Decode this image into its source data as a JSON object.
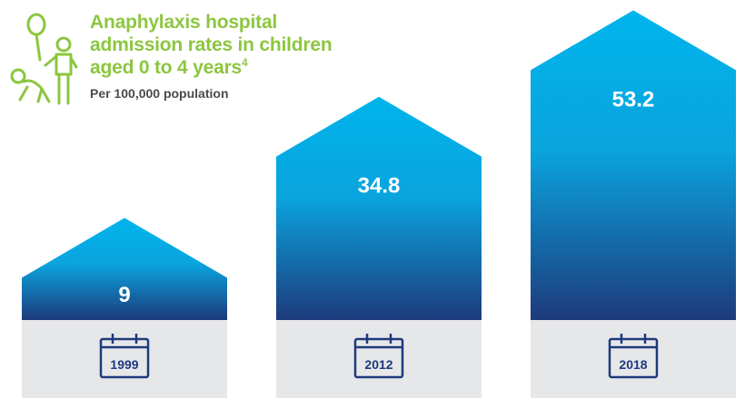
{
  "header": {
    "title": "Anaphylaxis hospital admission rates in children aged 0 to 4 years",
    "footnote": "4",
    "subtitle": "Per 100,000 population",
    "icon": "children-playing-icon"
  },
  "colors": {
    "title": "#8cc63f",
    "bar_top": "#00b4ec",
    "bar_bottom": "#1d3a7c",
    "base": "#e6e7e9",
    "calendar": "#1d3a7c"
  },
  "chart_data": {
    "type": "bar",
    "title": "Anaphylaxis hospital admission rates in children aged 0 to 4 years",
    "ylabel": "Per 100,000 population",
    "categories": [
      "1999",
      "2012",
      "2018"
    ],
    "values": [
      9,
      34.8,
      53.2
    ],
    "data_labels": [
      "9",
      "34.8",
      "53.2"
    ],
    "ylim": [
      0,
      60
    ],
    "grid": false,
    "legend": "none"
  }
}
